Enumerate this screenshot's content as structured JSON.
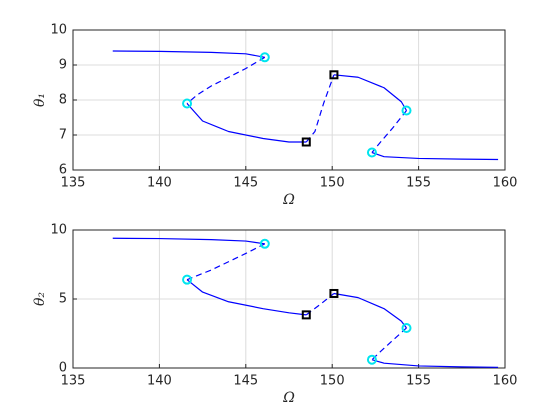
{
  "chart_data": [
    {
      "type": "line",
      "xlabel": "Ω",
      "ylabel": "θ₁",
      "xlim": [
        135,
        160
      ],
      "ylim": [
        6,
        10
      ],
      "xticks": [
        135,
        140,
        145,
        150,
        155,
        160
      ],
      "yticks": [
        6,
        7,
        8,
        9,
        10
      ],
      "grid": true,
      "series": [
        {
          "color": "#0000ff",
          "dash": false,
          "x": [
            137.3,
            140,
            143,
            145,
            146.1
          ],
          "values": [
            9.4,
            9.39,
            9.36,
            9.32,
            9.22
          ]
        },
        {
          "color": "#0000ff",
          "dash": true,
          "x": [
            146.1,
            145,
            144,
            143,
            142.2,
            141.6
          ],
          "values": [
            9.22,
            8.9,
            8.65,
            8.4,
            8.15,
            7.9
          ]
        },
        {
          "color": "#0000ff",
          "dash": false,
          "x": [
            141.6,
            142.5,
            144,
            146,
            147.5,
            148.5
          ],
          "values": [
            7.9,
            7.4,
            7.1,
            6.9,
            6.8,
            6.8
          ]
        },
        {
          "color": "#0000ff",
          "dash": true,
          "x": [
            148.5,
            149,
            149.5,
            150.1
          ],
          "values": [
            6.8,
            7.1,
            7.9,
            8.72
          ]
        },
        {
          "color": "#0000ff",
          "dash": false,
          "x": [
            150.1,
            151.5,
            153,
            154,
            154.3
          ],
          "values": [
            8.72,
            8.65,
            8.35,
            7.95,
            7.7
          ]
        },
        {
          "color": "#0000ff",
          "dash": true,
          "x": [
            154.3,
            153.5,
            152.8,
            152.3
          ],
          "values": [
            7.7,
            7.2,
            6.8,
            6.5
          ]
        },
        {
          "color": "#0000ff",
          "dash": false,
          "x": [
            152.3,
            153,
            155,
            157.5,
            159.6
          ],
          "values": [
            6.5,
            6.38,
            6.33,
            6.31,
            6.3
          ]
        },
        {
          "color": "#00e5ee",
          "marker": "o",
          "x": [
            146.1,
            141.6,
            154.3,
            152.3
          ],
          "values": [
            9.22,
            7.9,
            7.7,
            6.5
          ]
        },
        {
          "color": "#000000",
          "marker": "s",
          "x": [
            148.5,
            150.1
          ],
          "values": [
            6.8,
            8.72
          ]
        }
      ]
    },
    {
      "type": "line",
      "xlabel": "Ω",
      "ylabel": "θ₂",
      "xlim": [
        135,
        160
      ],
      "ylim": [
        0,
        10
      ],
      "xticks": [
        135,
        140,
        145,
        150,
        155,
        160
      ],
      "yticks": [
        0,
        5,
        10
      ],
      "grid": true,
      "series": [
        {
          "color": "#0000ff",
          "dash": false,
          "x": [
            137.3,
            140,
            143,
            145,
            146.1
          ],
          "values": [
            9.4,
            9.38,
            9.3,
            9.2,
            9.0
          ]
        },
        {
          "color": "#0000ff",
          "dash": true,
          "x": [
            146.1,
            145,
            144,
            143,
            142.2,
            141.6
          ],
          "values": [
            9.0,
            8.3,
            7.7,
            7.1,
            6.7,
            6.4
          ]
        },
        {
          "color": "#0000ff",
          "dash": false,
          "x": [
            141.6,
            142.5,
            144,
            146,
            147.5,
            148.5
          ],
          "values": [
            6.4,
            5.5,
            4.8,
            4.3,
            4.0,
            3.85
          ]
        },
        {
          "color": "#0000ff",
          "dash": true,
          "x": [
            148.5,
            149.3,
            150.1
          ],
          "values": [
            3.85,
            4.6,
            5.4
          ]
        },
        {
          "color": "#0000ff",
          "dash": false,
          "x": [
            150.1,
            151.5,
            153,
            154,
            154.3
          ],
          "values": [
            5.4,
            5.1,
            4.3,
            3.4,
            2.9
          ]
        },
        {
          "color": "#0000ff",
          "dash": true,
          "x": [
            154.3,
            153.5,
            152.8,
            152.3
          ],
          "values": [
            2.9,
            2.0,
            1.2,
            0.6
          ]
        },
        {
          "color": "#0000ff",
          "dash": false,
          "x": [
            152.3,
            153,
            155,
            157.5,
            159.6
          ],
          "values": [
            0.6,
            0.35,
            0.15,
            0.08,
            0.05
          ]
        },
        {
          "color": "#00e5ee",
          "marker": "o",
          "x": [
            146.1,
            141.6,
            154.3,
            152.3
          ],
          "values": [
            9.0,
            6.4,
            2.9,
            0.6
          ]
        },
        {
          "color": "#000000",
          "marker": "s",
          "x": [
            148.5,
            150.1
          ],
          "values": [
            3.85,
            5.4
          ]
        }
      ]
    }
  ]
}
